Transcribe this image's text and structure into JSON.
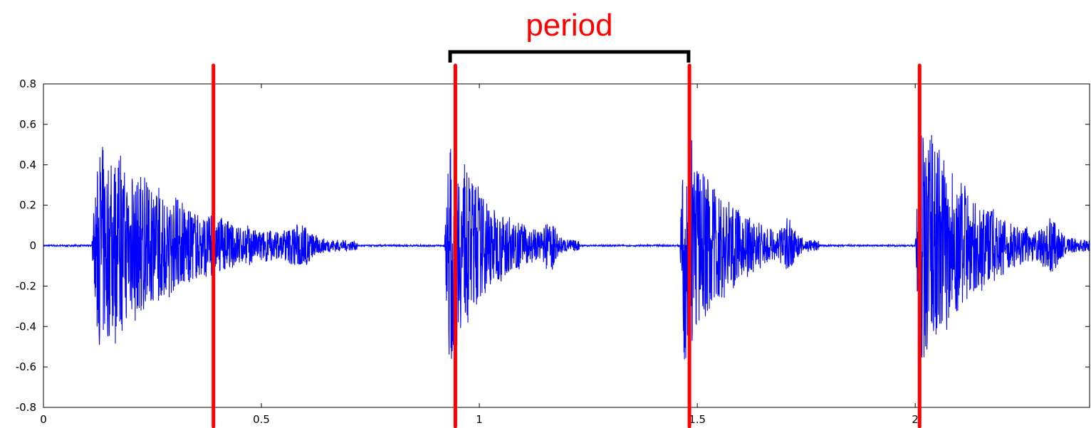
{
  "chart_data": {
    "type": "line",
    "title": "",
    "xlabel": "",
    "ylabel": "",
    "xlim": [
      0,
      2.4
    ],
    "ylim": [
      -0.8,
      0.8
    ],
    "grid": false,
    "x_ticks": [
      0,
      0.5,
      1,
      1.5,
      2
    ],
    "x_tick_labels": [
      "0",
      "0.5",
      "1",
      "1.5",
      "2"
    ],
    "y_ticks": [
      0.8,
      0.6,
      0.4,
      0.2,
      0,
      -0.2,
      -0.4,
      -0.6,
      -0.8
    ],
    "y_tick_labels": [
      "0.8",
      "0.6",
      "0.4",
      "0.2",
      "0",
      "-0.2",
      "-0.4",
      "-0.6",
      "-0.8"
    ],
    "series": [
      {
        "color": "#0000ff",
        "bursts": [
          {
            "start": 0.11,
            "end": 0.72,
            "peak_max": 0.52,
            "peak_min": -0.47
          },
          {
            "start": 0.92,
            "end": 1.23,
            "peak_max": 0.55,
            "peak_min": -0.7
          },
          {
            "start": 1.46,
            "end": 1.78,
            "peak_max": 0.58,
            "peak_min": -0.62
          },
          {
            "start": 2.0,
            "end": 2.4,
            "peak_max": 0.6,
            "peak_min": -0.7
          }
        ]
      }
    ],
    "annotations": {
      "period_text": "period",
      "period_bracket": {
        "x_start": 0.933,
        "x_end": 1.48
      },
      "markers_x": [
        0.39,
        0.945,
        1.482,
        2.01
      ],
      "marker_color": "#ff0000",
      "annotation_color": "#ff0000",
      "bracket_color": "#000000"
    }
  }
}
